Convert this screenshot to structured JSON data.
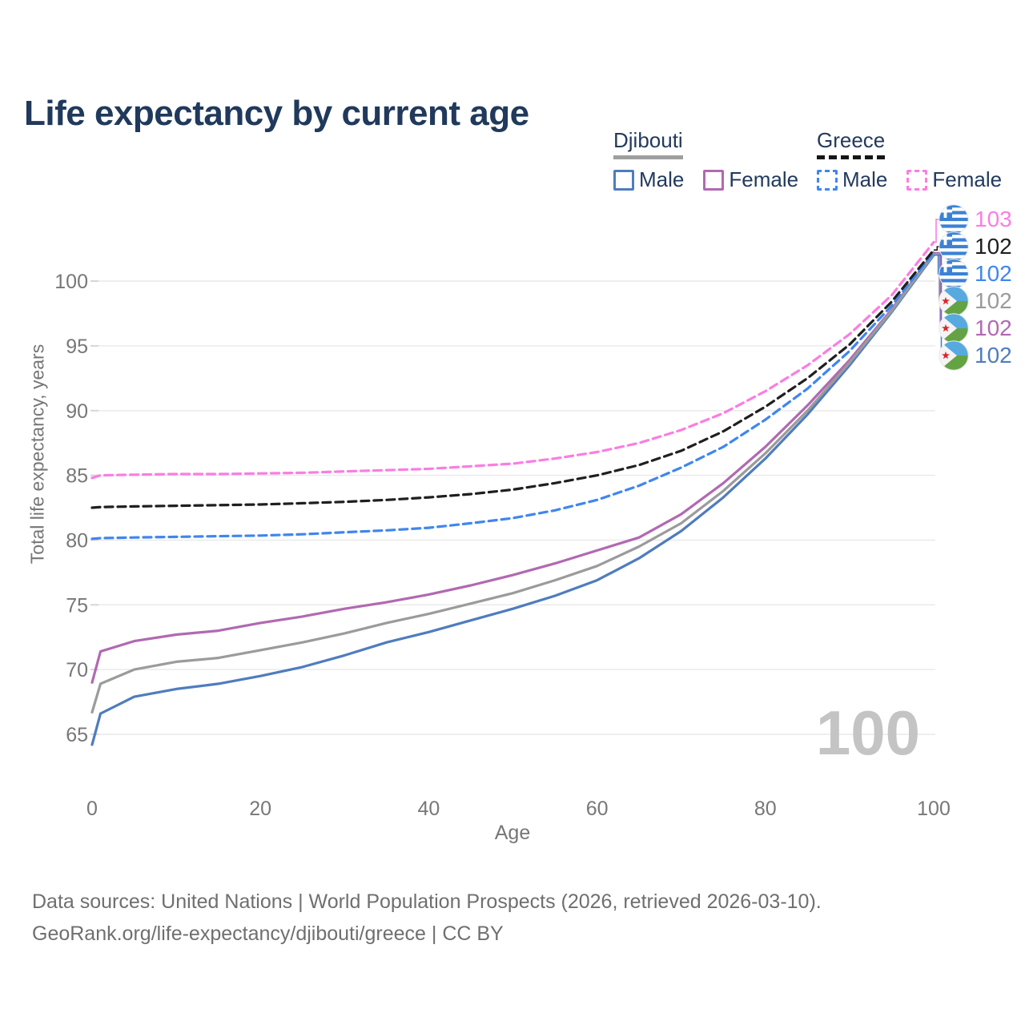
{
  "title": "Life expectancy by current age",
  "legend": {
    "groups": [
      {
        "country": "Djibouti",
        "line_style": "solid",
        "line_color": "#9e9e9e",
        "items": [
          {
            "label": "Male",
            "color": "#4f7cbe",
            "dash": false
          },
          {
            "label": "Female",
            "color": "#b169b1",
            "dash": false
          }
        ]
      },
      {
        "country": "Greece",
        "line_style": "dashed",
        "line_color": "#161616",
        "items": [
          {
            "label": "Male",
            "color": "#3f86f0",
            "dash": true
          },
          {
            "label": "Female",
            "color": "#fb7de2",
            "dash": true
          }
        ]
      }
    ]
  },
  "chart_data": {
    "type": "line",
    "title": "Life expectancy by current age",
    "xlabel": "Age",
    "ylabel": "Total life expectancy, years",
    "xlim": [
      0,
      100
    ],
    "ylim": [
      63,
      104
    ],
    "xticks": [
      0,
      20,
      40,
      60,
      80,
      100
    ],
    "yticks": [
      65,
      70,
      75,
      80,
      85,
      90,
      95,
      100
    ],
    "grid": "horizontal",
    "legend_position": "top-right",
    "watermark": "100",
    "x": [
      0,
      1,
      5,
      10,
      15,
      20,
      25,
      30,
      35,
      40,
      45,
      50,
      55,
      60,
      65,
      70,
      75,
      80,
      85,
      90,
      95,
      100
    ],
    "series": [
      {
        "name": "Greece Female",
        "country": "Greece",
        "sex": "Female",
        "color": "#fb7de2",
        "dash": true,
        "flag": "greece",
        "end_label": "103",
        "values": [
          84.8,
          85.0,
          85.05,
          85.1,
          85.1,
          85.15,
          85.2,
          85.3,
          85.4,
          85.5,
          85.7,
          85.9,
          86.3,
          86.8,
          87.5,
          88.5,
          89.8,
          91.5,
          93.5,
          95.9,
          98.9,
          103.0
        ]
      },
      {
        "name": "Greece",
        "country": "Greece",
        "sex": "Both",
        "color": "#1f1f1f",
        "dash": true,
        "flag": "greece",
        "end_label": "102",
        "values": [
          82.5,
          82.55,
          82.6,
          82.65,
          82.7,
          82.75,
          82.85,
          82.95,
          83.1,
          83.3,
          83.55,
          83.9,
          84.4,
          85.0,
          85.8,
          86.9,
          88.4,
          90.3,
          92.5,
          95.1,
          98.4,
          102.4
        ]
      },
      {
        "name": "Greece Male",
        "country": "Greece",
        "sex": "Male",
        "color": "#3f86f0",
        "dash": true,
        "flag": "greece",
        "end_label": "102",
        "values": [
          80.1,
          80.15,
          80.2,
          80.25,
          80.3,
          80.35,
          80.45,
          80.6,
          80.75,
          80.95,
          81.3,
          81.7,
          82.3,
          83.1,
          84.2,
          85.6,
          87.2,
          89.3,
          91.7,
          94.6,
          98.1,
          102.2
        ]
      },
      {
        "name": "Djibouti",
        "country": "Djibouti",
        "sex": "Both",
        "color": "#9b9b9b",
        "dash": false,
        "flag": "djibouti",
        "end_label": "102",
        "values": [
          66.7,
          68.9,
          70.0,
          70.6,
          70.9,
          71.5,
          72.1,
          72.8,
          73.6,
          74.3,
          75.1,
          75.9,
          76.9,
          78.0,
          79.5,
          81.3,
          83.8,
          86.7,
          90.0,
          93.7,
          97.7,
          102.1
        ]
      },
      {
        "name": "Djibouti Female",
        "country": "Djibouti",
        "sex": "Female",
        "color": "#b169b1",
        "dash": false,
        "flag": "djibouti",
        "end_label": "102",
        "values": [
          69.0,
          71.4,
          72.2,
          72.7,
          73.0,
          73.6,
          74.1,
          74.7,
          75.2,
          75.8,
          76.5,
          77.3,
          78.2,
          79.2,
          80.2,
          82.0,
          84.4,
          87.2,
          90.4,
          93.9,
          97.8,
          102.2
        ]
      },
      {
        "name": "Djibouti Male",
        "country": "Djibouti",
        "sex": "Male",
        "color": "#4f7cbe",
        "dash": false,
        "flag": "djibouti",
        "end_label": "102",
        "values": [
          64.2,
          66.6,
          67.9,
          68.5,
          68.9,
          69.5,
          70.2,
          71.1,
          72.1,
          72.9,
          73.8,
          74.7,
          75.7,
          76.9,
          78.6,
          80.7,
          83.3,
          86.3,
          89.7,
          93.5,
          97.6,
          102.0
        ]
      }
    ]
  },
  "footer": {
    "line1": "Data sources: United Nations | World Population Prospects (2026, retrieved 2026-03-10).",
    "line2": "GeoRank.org/life-expectancy/djibouti/greece | CC BY"
  }
}
